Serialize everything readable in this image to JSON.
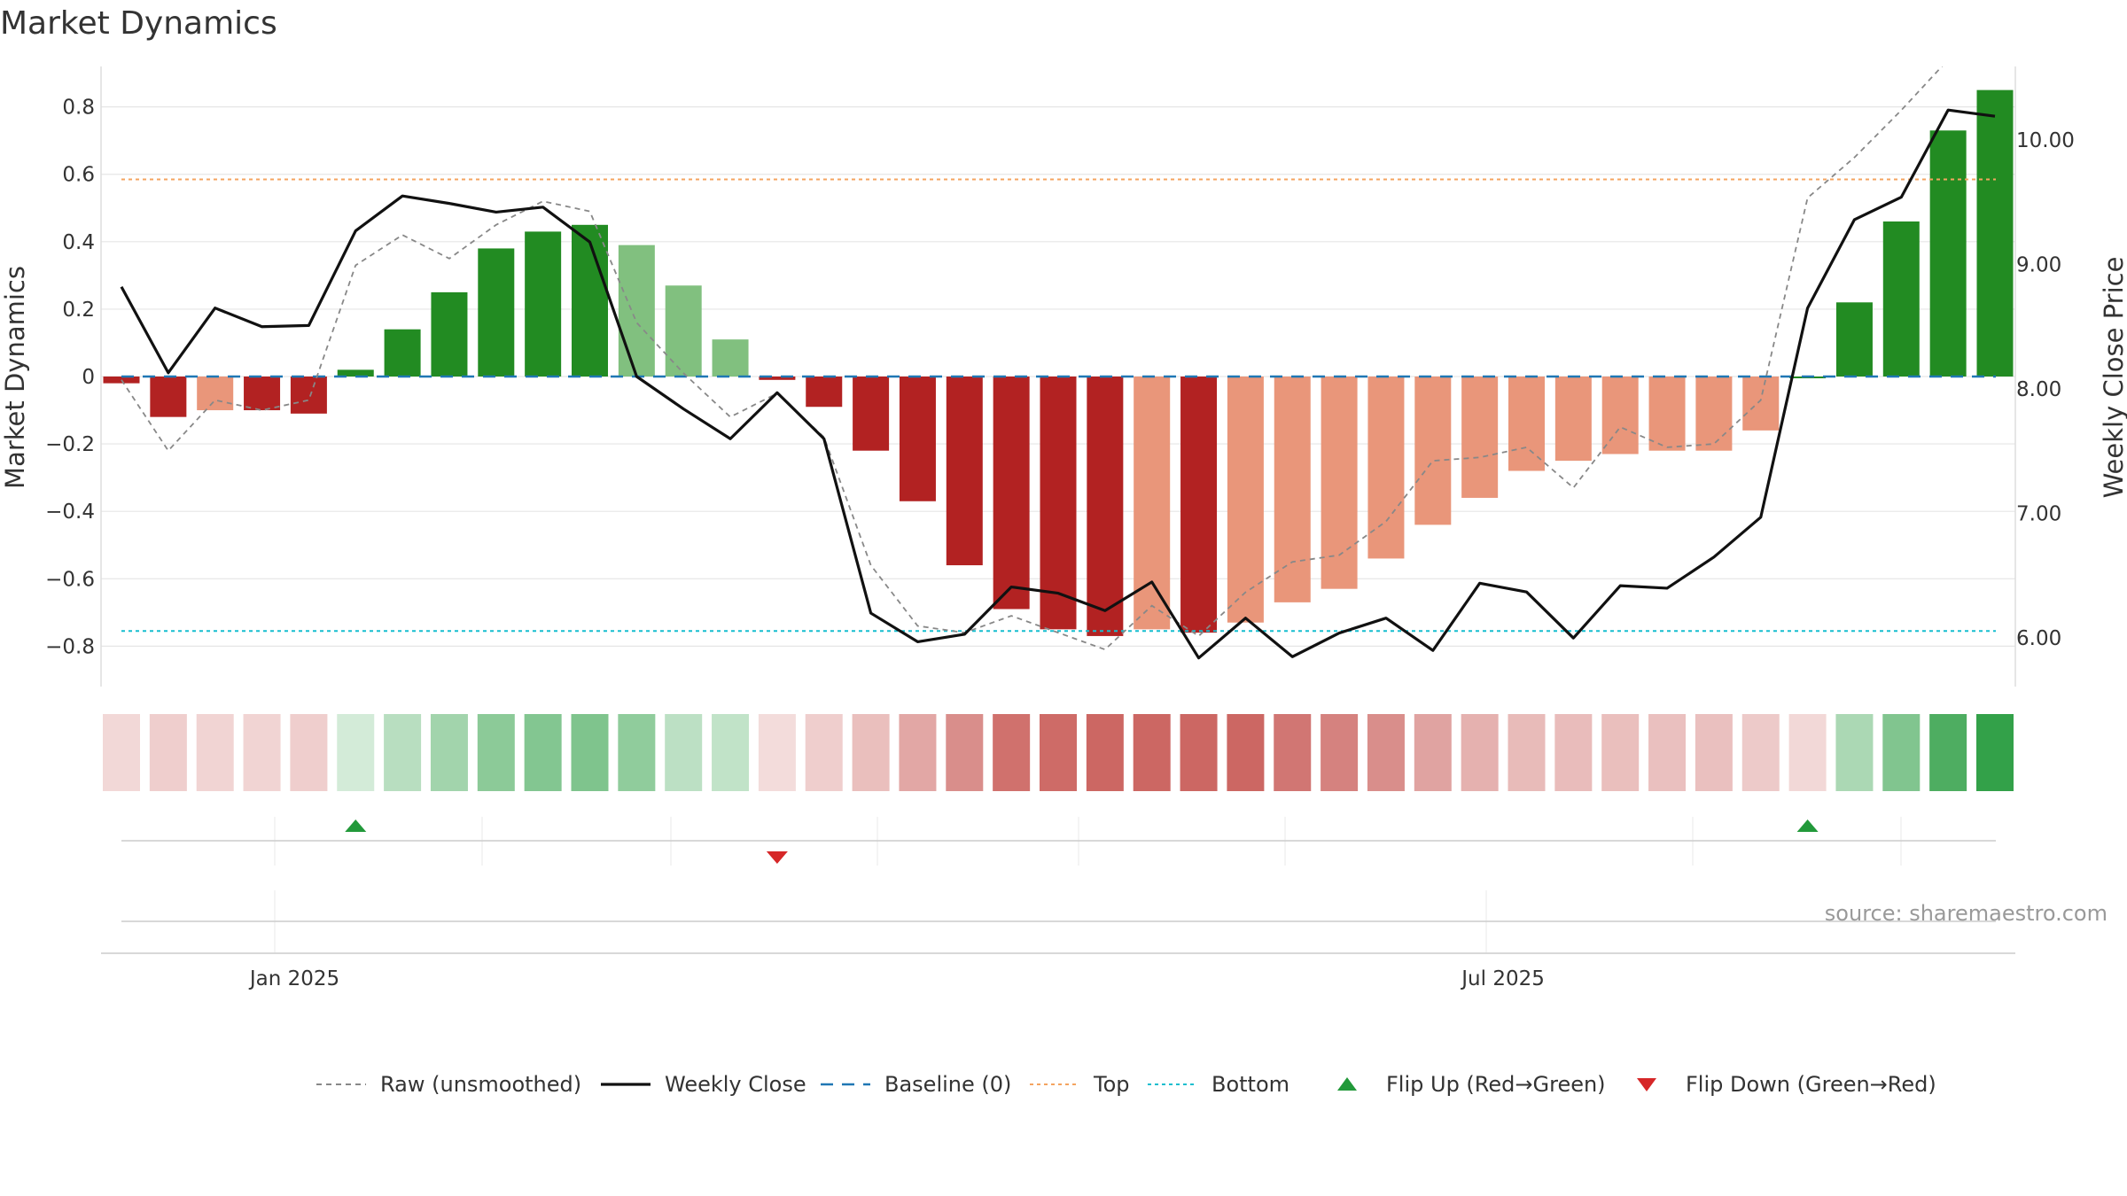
{
  "chart_data": {
    "type": "bar",
    "title": "Market Dynamics",
    "ylabel": "Market Dynamics",
    "y2label": "Weekly Close Price",
    "source": "source: sharemaestro.com",
    "ylim": [
      -0.92,
      0.92
    ],
    "y2lim": [
      5.61,
      10.59
    ],
    "yticks": [
      0.8,
      0.6,
      0.4,
      0.2,
      0,
      -0.2,
      -0.4,
      -0.6,
      -0.8
    ],
    "ytick_labels": [
      "0.8",
      "0.6",
      "0.4",
      "0.2",
      "0",
      "−0.2",
      "−0.4",
      "−0.6",
      "−0.8"
    ],
    "y2ticks": [
      10,
      9,
      8,
      7,
      6
    ],
    "y2tick_labels": [
      "10.00",
      "9.00",
      "8.00",
      "7.00",
      "6.00"
    ],
    "x_tick_labels": [
      {
        "label": "Jan 2025",
        "at": 3.7
      },
      {
        "label": "Jul 2025",
        "at": 29.5
      }
    ],
    "top_level": 0.585,
    "bottom_level": -0.755,
    "baseline": 0,
    "grid": true,
    "legend_position": "bottom-center",
    "colors": {
      "strong_green": "#228b22",
      "light_green": "#81c07f",
      "strong_red": "#b22222",
      "light_red": "#e9967a",
      "weekly_close": "#111111",
      "raw": "#888888",
      "baseline": "#1f77b4",
      "top": "#f4a460",
      "bottom": "#17becf",
      "flip_up": "#22993a",
      "flip_down": "#d62728"
    },
    "momentum": [
      -0.02,
      -0.12,
      -0.1,
      -0.1,
      -0.11,
      0.02,
      0.14,
      0.25,
      0.38,
      0.43,
      0.45,
      0.39,
      0.27,
      0.11,
      -0.01,
      -0.09,
      -0.22,
      -0.37,
      -0.56,
      -0.69,
      -0.75,
      -0.77,
      -0.75,
      -0.76,
      -0.73,
      -0.67,
      -0.63,
      -0.54,
      -0.44,
      -0.36,
      -0.28,
      -0.25,
      -0.23,
      -0.22,
      -0.22,
      -0.16,
      0.0,
      0.22,
      0.46,
      0.73,
      0.85
    ],
    "bar_shade": [
      "strong",
      "strong",
      "light",
      "strong",
      "strong",
      "strong",
      "strong",
      "strong",
      "strong",
      "strong",
      "strong",
      "light",
      "light",
      "light",
      "strong",
      "strong",
      "strong",
      "strong",
      "strong",
      "strong",
      "strong",
      "strong",
      "light",
      "strong",
      "light",
      "light",
      "light",
      "light",
      "light",
      "light",
      "light",
      "light",
      "light",
      "light",
      "light",
      "light",
      "strong",
      "strong",
      "strong",
      "strong",
      "strong"
    ],
    "series": [
      {
        "name": "Raw (unsmoothed)",
        "values": [
          -0.01,
          -0.22,
          -0.07,
          -0.1,
          -0.07,
          0.33,
          0.42,
          0.35,
          0.45,
          0.52,
          0.49,
          0.16,
          0.01,
          -0.12,
          -0.05,
          -0.18,
          -0.56,
          -0.74,
          -0.76,
          -0.71,
          -0.76,
          -0.81,
          -0.68,
          -0.77,
          -0.64,
          -0.55,
          -0.53,
          -0.43,
          -0.25,
          -0.24,
          -0.21,
          -0.33,
          -0.15,
          -0.21,
          -0.2,
          -0.07,
          0.53,
          0.65,
          0.79,
          0.94,
          0.96
        ]
      },
      {
        "name": "Weekly Close",
        "values": [
          8.82,
          8.13,
          8.65,
          8.5,
          8.51,
          9.27,
          9.55,
          9.49,
          9.42,
          9.46,
          9.18,
          8.1,
          7.84,
          7.6,
          7.97,
          7.6,
          6.2,
          5.97,
          6.03,
          6.41,
          6.36,
          6.22,
          6.45,
          5.84,
          6.16,
          5.85,
          6.04,
          6.16,
          5.9,
          6.44,
          6.37,
          6.0,
          6.42,
          6.4,
          6.65,
          6.97,
          8.65,
          9.36,
          9.54,
          10.24,
          10.19
        ]
      },
      {
        "name": "Baseline (0)"
      },
      {
        "name": "Top"
      },
      {
        "name": "Bottom"
      }
    ],
    "strip_intensity": [
      0.2,
      0.25,
      0.22,
      0.22,
      0.25,
      0.2,
      0.32,
      0.42,
      0.52,
      0.56,
      0.58,
      0.5,
      0.3,
      0.28,
      0.18,
      0.25,
      0.33,
      0.45,
      0.58,
      0.73,
      0.76,
      0.78,
      0.78,
      0.78,
      0.78,
      0.7,
      0.64,
      0.58,
      0.47,
      0.4,
      0.35,
      0.34,
      0.33,
      0.32,
      0.32,
      0.27,
      0.2,
      0.38,
      0.57,
      0.8,
      0.92
    ],
    "flip_up": [
      {
        "name": "Flip Up (Red→Green)",
        "at": 5
      },
      {
        "at": 36
      }
    ],
    "flip_down": [
      {
        "name": "Flip Down (Green→Red)",
        "at": 14
      }
    ],
    "legend": [
      {
        "label": "Raw (unsmoothed)",
        "style": "dash-grey"
      },
      {
        "label": "Weekly Close",
        "style": "solid-black"
      },
      {
        "label": "Baseline (0)",
        "style": "dash-blue"
      },
      {
        "label": "Top",
        "style": "dot-orange"
      },
      {
        "label": "Bottom",
        "style": "dot-cyan"
      },
      {
        "label": "Flip Up (Red→Green)",
        "style": "tri-up"
      },
      {
        "label": "Flip Down (Green→Red)",
        "style": "tri-down"
      }
    ]
  }
}
